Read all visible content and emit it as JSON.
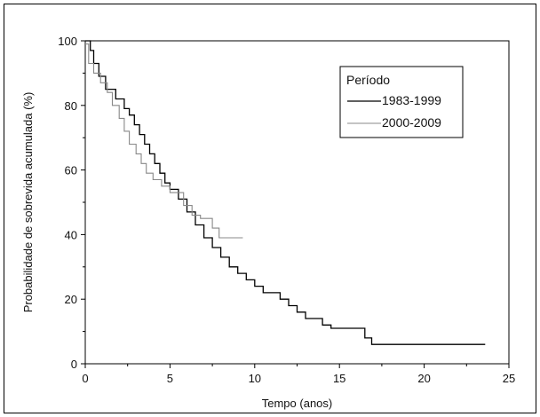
{
  "chart_data": {
    "type": "line",
    "step": true,
    "xlabel": "Tempo (anos)",
    "ylabel": "Probabilidade de sobrevida acumulada (%)",
    "xlim": [
      0,
      25
    ],
    "ylim": [
      0,
      100
    ],
    "xticks": [
      0,
      5,
      10,
      15,
      20,
      25
    ],
    "yticks": [
      0,
      20,
      40,
      60,
      80,
      100
    ],
    "grid": false,
    "legend": {
      "title": "Período",
      "position": "top-right"
    },
    "series": [
      {
        "name": "1983-1999",
        "color": "#000000",
        "points": [
          [
            0,
            100
          ],
          [
            0.3,
            100
          ],
          [
            0.3,
            97
          ],
          [
            0.5,
            97
          ],
          [
            0.5,
            93
          ],
          [
            0.8,
            93
          ],
          [
            0.8,
            89
          ],
          [
            1.2,
            89
          ],
          [
            1.2,
            85
          ],
          [
            1.8,
            85
          ],
          [
            1.8,
            82
          ],
          [
            2.3,
            82
          ],
          [
            2.3,
            79
          ],
          [
            2.6,
            79
          ],
          [
            2.6,
            77
          ],
          [
            2.9,
            77
          ],
          [
            2.9,
            74
          ],
          [
            3.2,
            74
          ],
          [
            3.2,
            71
          ],
          [
            3.5,
            71
          ],
          [
            3.5,
            68
          ],
          [
            3.8,
            68
          ],
          [
            3.8,
            65
          ],
          [
            4.1,
            65
          ],
          [
            4.1,
            62
          ],
          [
            4.4,
            62
          ],
          [
            4.4,
            59
          ],
          [
            4.7,
            59
          ],
          [
            4.7,
            56
          ],
          [
            5.0,
            56
          ],
          [
            5.0,
            54
          ],
          [
            5.5,
            54
          ],
          [
            5.5,
            51
          ],
          [
            6.0,
            51
          ],
          [
            6.0,
            47
          ],
          [
            6.5,
            47
          ],
          [
            6.5,
            43
          ],
          [
            7.0,
            43
          ],
          [
            7.0,
            39
          ],
          [
            7.5,
            39
          ],
          [
            7.5,
            36
          ],
          [
            8.0,
            36
          ],
          [
            8.0,
            33
          ],
          [
            8.5,
            33
          ],
          [
            8.5,
            30
          ],
          [
            9.0,
            30
          ],
          [
            9.0,
            28
          ],
          [
            9.5,
            28
          ],
          [
            9.5,
            26
          ],
          [
            10.0,
            26
          ],
          [
            10.0,
            24
          ],
          [
            10.5,
            24
          ],
          [
            10.5,
            22
          ],
          [
            11.5,
            22
          ],
          [
            11.5,
            20
          ],
          [
            12.0,
            20
          ],
          [
            12.0,
            18
          ],
          [
            12.5,
            18
          ],
          [
            12.5,
            16
          ],
          [
            13.0,
            16
          ],
          [
            13.0,
            14
          ],
          [
            13.5,
            14
          ],
          [
            13.5,
            14
          ],
          [
            14.0,
            14
          ],
          [
            14.0,
            12
          ],
          [
            14.5,
            12
          ],
          [
            14.5,
            11
          ],
          [
            16.5,
            11
          ],
          [
            16.5,
            8
          ],
          [
            16.9,
            8
          ],
          [
            16.9,
            6
          ],
          [
            23.6,
            6
          ]
        ]
      },
      {
        "name": "2000-2009",
        "color": "#888888",
        "points": [
          [
            0,
            99
          ],
          [
            0.2,
            99
          ],
          [
            0.2,
            93
          ],
          [
            0.5,
            93
          ],
          [
            0.5,
            90
          ],
          [
            0.9,
            90
          ],
          [
            0.9,
            87
          ],
          [
            1.3,
            87
          ],
          [
            1.3,
            84
          ],
          [
            1.6,
            84
          ],
          [
            1.6,
            80
          ],
          [
            2.0,
            80
          ],
          [
            2.0,
            76
          ],
          [
            2.3,
            76
          ],
          [
            2.3,
            72
          ],
          [
            2.6,
            72
          ],
          [
            2.6,
            68
          ],
          [
            3.0,
            68
          ],
          [
            3.0,
            65
          ],
          [
            3.3,
            65
          ],
          [
            3.3,
            62
          ],
          [
            3.6,
            62
          ],
          [
            3.6,
            59
          ],
          [
            4.0,
            59
          ],
          [
            4.0,
            57
          ],
          [
            4.5,
            57
          ],
          [
            4.5,
            55
          ],
          [
            5.0,
            55
          ],
          [
            5.0,
            53
          ],
          [
            5.8,
            53
          ],
          [
            5.8,
            49
          ],
          [
            6.3,
            49
          ],
          [
            6.3,
            46
          ],
          [
            6.8,
            46
          ],
          [
            6.8,
            45
          ],
          [
            7.5,
            45
          ],
          [
            7.5,
            42
          ],
          [
            7.9,
            42
          ],
          [
            7.9,
            39
          ],
          [
            9.3,
            39
          ]
        ]
      }
    ]
  }
}
